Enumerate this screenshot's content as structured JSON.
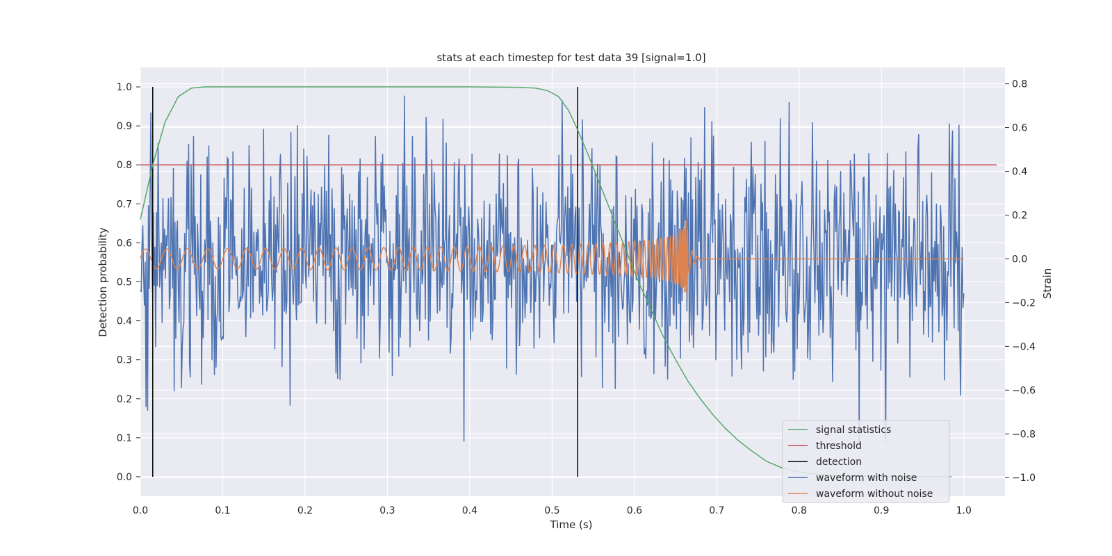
{
  "chart_data": {
    "type": "line",
    "title": "stats at each timestep for test data 39 [signal=1.0]",
    "xlabel": "Time (s)",
    "ylabel": "Detection probability",
    "y2label": "Strain",
    "xlim": [
      0.0,
      1.05
    ],
    "ylim": [
      -0.05,
      1.05
    ],
    "y2lim": [
      -1.085,
      0.875
    ],
    "x_ticks": [
      "0.0",
      "0.1",
      "0.2",
      "0.3",
      "0.4",
      "0.5",
      "0.6",
      "0.7",
      "0.8",
      "0.9",
      "1.0"
    ],
    "y_ticks": [
      "0.0",
      "0.1",
      "0.2",
      "0.3",
      "0.4",
      "0.5",
      "0.6",
      "0.7",
      "0.8",
      "0.9",
      "1.0"
    ],
    "y2_ticks": [
      "−1.0",
      "−0.8",
      "−0.6",
      "−0.4",
      "−0.2",
      "0.0",
      "0.2",
      "0.4",
      "0.6",
      "0.8"
    ],
    "grid": true,
    "legend_position": "lower-right",
    "colors": {
      "background": "#eaeaf2",
      "grid": "#ffffff",
      "signal_statistics": "#55a868",
      "threshold": "#c44e52",
      "detection": "#000000",
      "waveform_with_noise": "#4c72b0",
      "waveform_without_noise": "#dd8452"
    },
    "series": [
      {
        "name": "signal statistics",
        "axis": "left",
        "x": [
          0.0,
          0.015,
          0.03,
          0.046,
          0.062,
          0.078,
          0.1,
          0.2,
          0.3,
          0.4,
          0.46,
          0.48,
          0.495,
          0.508,
          0.52,
          0.531,
          0.545,
          0.56,
          0.575,
          0.59,
          0.605,
          0.62,
          0.635,
          0.65,
          0.665,
          0.68,
          0.695,
          0.71,
          0.725,
          0.74,
          0.76,
          0.78,
          0.8,
          0.83,
          0.86,
          0.9,
          0.95,
          0.985
        ],
        "values": [
          0.66,
          0.8,
          0.91,
          0.975,
          0.997,
          1.0,
          1.0,
          1.0,
          1.0,
          1.0,
          0.999,
          0.997,
          0.99,
          0.975,
          0.94,
          0.89,
          0.82,
          0.74,
          0.66,
          0.58,
          0.5,
          0.43,
          0.36,
          0.3,
          0.245,
          0.2,
          0.16,
          0.125,
          0.095,
          0.07,
          0.04,
          0.022,
          0.012,
          0.005,
          0.002,
          0.001,
          0.0,
          0.0
        ]
      },
      {
        "name": "threshold",
        "axis": "left",
        "x": [
          0.0,
          1.04
        ],
        "values": [
          0.8,
          0.8
        ]
      },
      {
        "name": "detection",
        "axis": "left",
        "vlines": [
          0.015,
          0.531
        ],
        "range": [
          0.0,
          1.0
        ]
      },
      {
        "name": "waveform with noise",
        "axis": "right",
        "x_range": [
          0.0,
          1.0
        ],
        "samples": 1024,
        "amplitude_sd": 0.28,
        "note_values": "random noisy strain series, approx. range −1.0 to 0.8"
      },
      {
        "name": "waveform without noise",
        "axis": "right",
        "x_range": [
          0.0,
          1.0
        ],
        "chirp_end": 0.665,
        "amplitude_start": 0.045,
        "amplitude_peak": 0.22
      }
    ]
  }
}
